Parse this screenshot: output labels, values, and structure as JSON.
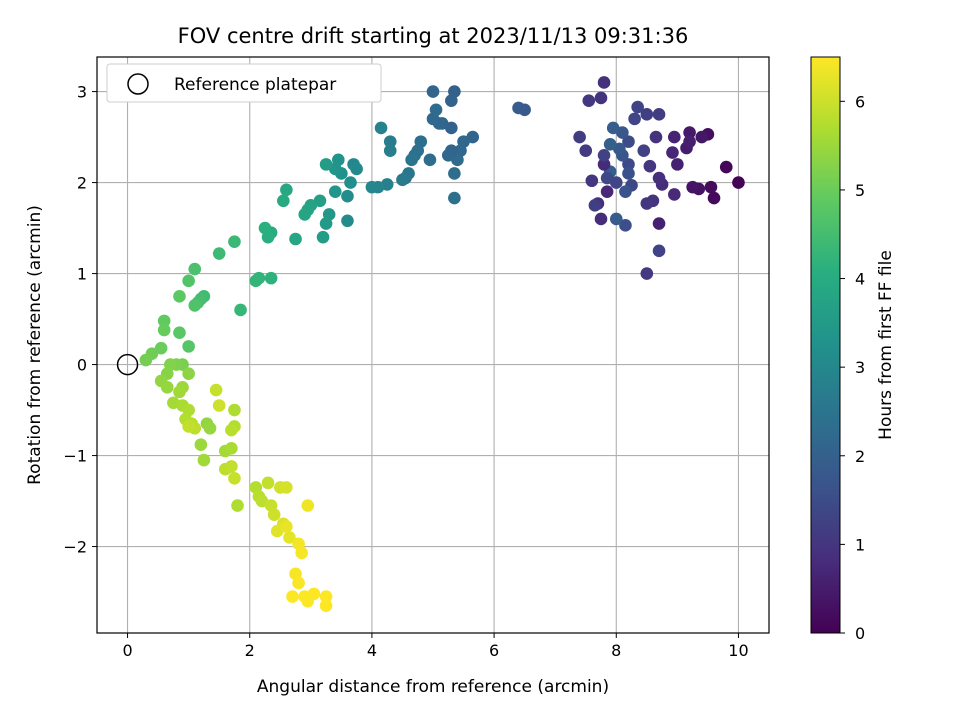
{
  "chart_data": {
    "type": "scatter",
    "title": "FOV centre drift starting at 2023/11/13 09:31:36",
    "xlabel": "Angular distance from reference (arcmin)",
    "ylabel": "Rotation from reference (arcmin)",
    "xlim": [
      -0.5,
      10.5
    ],
    "ylim": [
      -2.95,
      3.38
    ],
    "xticks": [
      "0",
      "2",
      "4",
      "6",
      "8",
      "10"
    ],
    "yticks": [
      "−2",
      "−1",
      "0",
      "1",
      "2",
      "3"
    ],
    "grid": true,
    "legend": {
      "placement": "top-left",
      "entries": [
        "Reference platepar"
      ]
    },
    "reference_point": {
      "x": 0,
      "y": 0
    },
    "colorbar": {
      "label": "Hours from first FF file",
      "range": [
        0,
        6.5
      ],
      "ticks": [
        "0",
        "1",
        "2",
        "3",
        "4",
        "5",
        "6"
      ],
      "colormap": "viridis"
    },
    "series": [
      {
        "points": [
          {
            "x": 10.0,
            "y": 2.0,
            "t": 0.05
          },
          {
            "x": 9.8,
            "y": 2.17,
            "t": 0.1
          },
          {
            "x": 9.6,
            "y": 1.83,
            "t": 0.15
          },
          {
            "x": 9.55,
            "y": 1.95,
            "t": 0.2
          },
          {
            "x": 9.5,
            "y": 2.53,
            "t": 0.25
          },
          {
            "x": 9.35,
            "y": 1.93,
            "t": 0.3
          },
          {
            "x": 9.25,
            "y": 1.95,
            "t": 0.35
          },
          {
            "x": 9.4,
            "y": 2.5,
            "t": 0.4
          },
          {
            "x": 9.2,
            "y": 2.55,
            "t": 0.45
          },
          {
            "x": 9.15,
            "y": 2.38,
            "t": 0.5
          },
          {
            "x": 9.2,
            "y": 2.45,
            "t": 0.55
          },
          {
            "x": 9.0,
            "y": 2.2,
            "t": 0.6
          },
          {
            "x": 8.95,
            "y": 2.5,
            "t": 0.65
          },
          {
            "x": 8.92,
            "y": 2.33,
            "t": 0.7
          },
          {
            "x": 8.95,
            "y": 1.87,
            "t": 0.75
          },
          {
            "x": 8.75,
            "y": 1.98,
            "t": 0.8
          },
          {
            "x": 8.7,
            "y": 2.05,
            "t": 0.85
          },
          {
            "x": 8.65,
            "y": 2.5,
            "t": 0.9
          },
          {
            "x": 8.6,
            "y": 1.8,
            "t": 0.95
          },
          {
            "x": 8.55,
            "y": 2.18,
            "t": 1.0
          },
          {
            "x": 8.5,
            "y": 1.77,
            "t": 1.05
          },
          {
            "x": 8.5,
            "y": 1.0,
            "t": 1.1
          },
          {
            "x": 8.7,
            "y": 2.75,
            "t": 1.15
          },
          {
            "x": 8.5,
            "y": 2.75,
            "t": 1.2
          },
          {
            "x": 8.45,
            "y": 2.35,
            "t": 1.25
          },
          {
            "x": 8.35,
            "y": 2.83,
            "t": 1.3
          },
          {
            "x": 8.3,
            "y": 2.7,
            "t": 1.35
          },
          {
            "x": 8.25,
            "y": 1.97,
            "t": 1.4
          },
          {
            "x": 8.2,
            "y": 2.2,
            "t": 1.45
          },
          {
            "x": 8.2,
            "y": 2.45,
            "t": 1.5
          },
          {
            "x": 8.15,
            "y": 1.53,
            "t": 1.55
          },
          {
            "x": 8.2,
            "y": 2.1,
            "t": 1.6
          },
          {
            "x": 8.15,
            "y": 1.9,
            "t": 1.65
          },
          {
            "x": 8.1,
            "y": 2.3,
            "t": 1.7
          },
          {
            "x": 8.1,
            "y": 2.55,
            "t": 1.75
          },
          {
            "x": 8.05,
            "y": 2.37,
            "t": 1.8
          },
          {
            "x": 8.0,
            "y": 1.6,
            "t": 1.85
          },
          {
            "x": 7.95,
            "y": 2.6,
            "t": 1.9
          },
          {
            "x": 7.9,
            "y": 2.12,
            "t": 1.95
          },
          {
            "x": 7.9,
            "y": 2.42,
            "t": 2.0
          },
          {
            "x": 7.85,
            "y": 1.9,
            "t": 0.7
          },
          {
            "x": 7.8,
            "y": 2.2,
            "t": 0.75
          },
          {
            "x": 7.75,
            "y": 1.6,
            "t": 0.8
          },
          {
            "x": 7.7,
            "y": 1.77,
            "t": 0.85
          },
          {
            "x": 7.8,
            "y": 3.1,
            "t": 0.9
          },
          {
            "x": 7.75,
            "y": 2.93,
            "t": 0.95
          },
          {
            "x": 7.6,
            "y": 2.02,
            "t": 1.0
          },
          {
            "x": 7.55,
            "y": 2.9,
            "t": 1.05
          },
          {
            "x": 7.5,
            "y": 2.35,
            "t": 1.1
          },
          {
            "x": 7.4,
            "y": 2.5,
            "t": 1.15
          },
          {
            "x": 7.65,
            "y": 1.75,
            "t": 1.2
          },
          {
            "x": 7.8,
            "y": 2.3,
            "t": 1.25
          },
          {
            "x": 8.7,
            "y": 1.25,
            "t": 1.3
          },
          {
            "x": 8.7,
            "y": 1.55,
            "t": 0.6
          },
          {
            "x": 8.0,
            "y": 2.0,
            "t": 1.35
          },
          {
            "x": 7.85,
            "y": 2.05,
            "t": 1.4
          },
          {
            "x": 6.5,
            "y": 2.8,
            "t": 1.8
          },
          {
            "x": 6.4,
            "y": 2.82,
            "t": 1.85
          },
          {
            "x": 5.65,
            "y": 2.5,
            "t": 2.1
          },
          {
            "x": 5.5,
            "y": 2.45,
            "t": 2.15
          },
          {
            "x": 5.45,
            "y": 2.35,
            "t": 2.2
          },
          {
            "x": 5.4,
            "y": 2.25,
            "t": 2.25
          },
          {
            "x": 5.35,
            "y": 2.1,
            "t": 2.3
          },
          {
            "x": 5.35,
            "y": 1.83,
            "t": 2.35
          },
          {
            "x": 5.35,
            "y": 3.0,
            "t": 2.0
          },
          {
            "x": 5.3,
            "y": 2.9,
            "t": 2.05
          },
          {
            "x": 5.3,
            "y": 2.35,
            "t": 2.1
          },
          {
            "x": 5.25,
            "y": 2.3,
            "t": 2.15
          },
          {
            "x": 5.3,
            "y": 2.6,
            "t": 2.05
          },
          {
            "x": 5.15,
            "y": 2.65,
            "t": 2.1
          },
          {
            "x": 5.1,
            "y": 2.65,
            "t": 2.15
          },
          {
            "x": 5.0,
            "y": 2.7,
            "t": 2.2
          },
          {
            "x": 5.05,
            "y": 2.8,
            "t": 2.25
          },
          {
            "x": 5.0,
            "y": 3.0,
            "t": 2.1
          },
          {
            "x": 4.95,
            "y": 2.25,
            "t": 2.3
          },
          {
            "x": 4.8,
            "y": 2.45,
            "t": 2.35
          },
          {
            "x": 4.75,
            "y": 2.35,
            "t": 2.4
          },
          {
            "x": 4.7,
            "y": 2.3,
            "t": 2.45
          },
          {
            "x": 4.65,
            "y": 2.25,
            "t": 2.5
          },
          {
            "x": 4.6,
            "y": 2.1,
            "t": 2.55
          },
          {
            "x": 4.55,
            "y": 2.05,
            "t": 2.6
          },
          {
            "x": 4.5,
            "y": 2.03,
            "t": 2.65
          },
          {
            "x": 4.3,
            "y": 2.45,
            "t": 2.7
          },
          {
            "x": 4.3,
            "y": 2.35,
            "t": 2.75
          },
          {
            "x": 4.25,
            "y": 1.98,
            "t": 2.8
          },
          {
            "x": 4.15,
            "y": 2.6,
            "t": 2.85
          },
          {
            "x": 4.1,
            "y": 1.95,
            "t": 2.9
          },
          {
            "x": 4.0,
            "y": 1.95,
            "t": 2.95
          },
          {
            "x": 3.7,
            "y": 2.2,
            "t": 3.0
          },
          {
            "x": 3.75,
            "y": 2.15,
            "t": 3.05
          },
          {
            "x": 3.6,
            "y": 1.58,
            "t": 3.1
          },
          {
            "x": 3.6,
            "y": 1.85,
            "t": 3.15
          },
          {
            "x": 3.65,
            "y": 2.0,
            "t": 3.2
          },
          {
            "x": 3.5,
            "y": 2.1,
            "t": 3.25
          },
          {
            "x": 3.45,
            "y": 2.25,
            "t": 3.3
          },
          {
            "x": 3.4,
            "y": 2.15,
            "t": 3.35
          },
          {
            "x": 3.4,
            "y": 1.9,
            "t": 3.4
          },
          {
            "x": 3.3,
            "y": 1.65,
            "t": 3.45
          },
          {
            "x": 3.25,
            "y": 1.55,
            "t": 3.5
          },
          {
            "x": 3.25,
            "y": 2.2,
            "t": 3.55
          },
          {
            "x": 3.2,
            "y": 1.4,
            "t": 3.6
          },
          {
            "x": 3.15,
            "y": 1.8,
            "t": 3.65
          },
          {
            "x": 3.0,
            "y": 1.75,
            "t": 3.7
          },
          {
            "x": 2.95,
            "y": 1.7,
            "t": 3.75
          },
          {
            "x": 2.9,
            "y": 1.65,
            "t": 3.8
          },
          {
            "x": 2.75,
            "y": 1.38,
            "t": 3.85
          },
          {
            "x": 2.6,
            "y": 1.92,
            "t": 3.9
          },
          {
            "x": 2.55,
            "y": 1.8,
            "t": 3.95
          },
          {
            "x": 2.35,
            "y": 1.45,
            "t": 4.0
          },
          {
            "x": 2.3,
            "y": 1.4,
            "t": 4.05
          },
          {
            "x": 2.25,
            "y": 1.5,
            "t": 4.1
          },
          {
            "x": 2.35,
            "y": 0.95,
            "t": 4.15
          },
          {
            "x": 2.15,
            "y": 0.95,
            "t": 4.2
          },
          {
            "x": 2.1,
            "y": 0.92,
            "t": 4.25
          },
          {
            "x": 1.85,
            "y": 0.6,
            "t": 4.3
          },
          {
            "x": 1.75,
            "y": 1.35,
            "t": 4.35
          },
          {
            "x": 1.5,
            "y": 1.22,
            "t": 4.4
          },
          {
            "x": 1.25,
            "y": 0.75,
            "t": 4.45
          },
          {
            "x": 1.2,
            "y": 0.72,
            "t": 4.5
          },
          {
            "x": 1.15,
            "y": 0.68,
            "t": 4.55
          },
          {
            "x": 1.1,
            "y": 1.05,
            "t": 4.6
          },
          {
            "x": 1.1,
            "y": 0.65,
            "t": 4.65
          },
          {
            "x": 1.0,
            "y": 0.92,
            "t": 4.7
          },
          {
            "x": 1.0,
            "y": 0.2,
            "t": 4.75
          },
          {
            "x": 0.85,
            "y": 0.35,
            "t": 4.8
          },
          {
            "x": 0.85,
            "y": 0.75,
            "t": 4.85
          },
          {
            "x": 0.6,
            "y": 0.48,
            "t": 4.9
          },
          {
            "x": 0.6,
            "y": 0.38,
            "t": 4.95
          },
          {
            "x": 0.55,
            "y": 0.18,
            "t": 5.0
          },
          {
            "x": 0.4,
            "y": 0.12,
            "t": 5.05
          },
          {
            "x": 0.3,
            "y": 0.05,
            "t": 5.1
          },
          {
            "x": 0.9,
            "y": 0.0,
            "t": 5.15
          },
          {
            "x": 0.8,
            "y": 0.0,
            "t": 5.2
          },
          {
            "x": 0.7,
            "y": 0.0,
            "t": 5.25
          },
          {
            "x": 0.65,
            "y": -0.1,
            "t": 5.3
          },
          {
            "x": 1.0,
            "y": -0.1,
            "t": 5.35
          },
          {
            "x": 0.55,
            "y": -0.18,
            "t": 5.4
          },
          {
            "x": 0.65,
            "y": -0.25,
            "t": 5.45
          },
          {
            "x": 0.9,
            "y": -0.25,
            "t": 5.5
          },
          {
            "x": 0.85,
            "y": -0.3,
            "t": 5.55
          },
          {
            "x": 0.75,
            "y": -0.42,
            "t": 5.6
          },
          {
            "x": 0.9,
            "y": -0.45,
            "t": 5.65
          },
          {
            "x": 1.0,
            "y": -0.5,
            "t": 5.7
          },
          {
            "x": 0.95,
            "y": -0.6,
            "t": 5.75
          },
          {
            "x": 1.05,
            "y": -0.65,
            "t": 5.8
          },
          {
            "x": 1.1,
            "y": -0.7,
            "t": 5.85
          },
          {
            "x": 1.0,
            "y": -0.68,
            "t": 5.9
          },
          {
            "x": 1.45,
            "y": -0.28,
            "t": 5.95
          },
          {
            "x": 1.5,
            "y": -0.45,
            "t": 6.0
          },
          {
            "x": 1.3,
            "y": -0.65,
            "t": 5.4
          },
          {
            "x": 1.35,
            "y": -0.7,
            "t": 5.45
          },
          {
            "x": 1.2,
            "y": -0.88,
            "t": 5.5
          },
          {
            "x": 1.25,
            "y": -1.05,
            "t": 5.55
          },
          {
            "x": 1.6,
            "y": -0.95,
            "t": 5.6
          },
          {
            "x": 1.7,
            "y": -0.92,
            "t": 5.65
          },
          {
            "x": 1.75,
            "y": -0.5,
            "t": 5.7
          },
          {
            "x": 1.75,
            "y": -0.68,
            "t": 5.75
          },
          {
            "x": 1.7,
            "y": -0.72,
            "t": 5.8
          },
          {
            "x": 1.6,
            "y": -1.15,
            "t": 5.85
          },
          {
            "x": 1.7,
            "y": -1.12,
            "t": 5.9
          },
          {
            "x": 1.75,
            "y": -1.25,
            "t": 5.95
          },
          {
            "x": 1.8,
            "y": -1.55,
            "t": 5.7
          },
          {
            "x": 2.1,
            "y": -1.35,
            "t": 5.75
          },
          {
            "x": 2.15,
            "y": -1.45,
            "t": 5.8
          },
          {
            "x": 2.2,
            "y": -1.5,
            "t": 5.85
          },
          {
            "x": 2.3,
            "y": -1.3,
            "t": 5.9
          },
          {
            "x": 2.35,
            "y": -1.55,
            "t": 5.95
          },
          {
            "x": 2.4,
            "y": -1.65,
            "t": 6.0
          },
          {
            "x": 2.5,
            "y": -1.35,
            "t": 6.05
          },
          {
            "x": 2.6,
            "y": -1.35,
            "t": 6.1
          },
          {
            "x": 2.55,
            "y": -1.75,
            "t": 6.15
          },
          {
            "x": 2.45,
            "y": -1.83,
            "t": 6.2
          },
          {
            "x": 2.65,
            "y": -1.9,
            "t": 6.25
          },
          {
            "x": 2.6,
            "y": -1.78,
            "t": 6.3
          },
          {
            "x": 2.95,
            "y": -1.55,
            "t": 6.35
          },
          {
            "x": 2.8,
            "y": -1.97,
            "t": 6.4
          },
          {
            "x": 2.85,
            "y": -2.07,
            "t": 6.42
          },
          {
            "x": 2.75,
            "y": -2.3,
            "t": 6.44
          },
          {
            "x": 2.8,
            "y": -2.4,
            "t": 6.46
          },
          {
            "x": 2.7,
            "y": -2.55,
            "t": 6.48
          },
          {
            "x": 2.9,
            "y": -2.55,
            "t": 6.5
          },
          {
            "x": 3.05,
            "y": -2.52,
            "t": 6.5
          },
          {
            "x": 3.25,
            "y": -2.55,
            "t": 6.5
          },
          {
            "x": 3.25,
            "y": -2.65,
            "t": 6.5
          },
          {
            "x": 2.95,
            "y": -2.6,
            "t": 6.48
          }
        ]
      }
    ]
  }
}
